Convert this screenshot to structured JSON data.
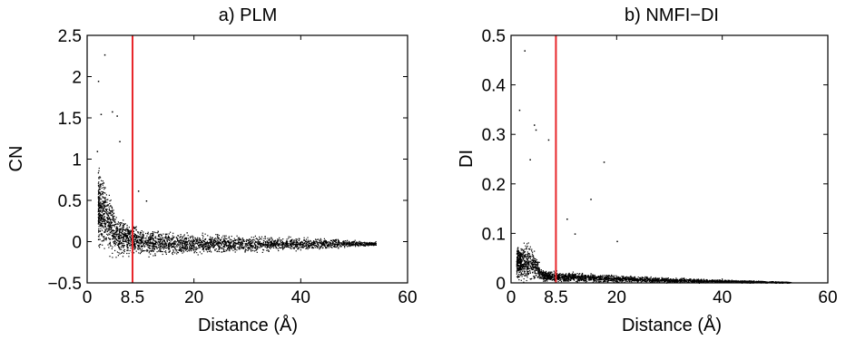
{
  "chart_data": [
    {
      "type": "scatter",
      "title": "a) PLM",
      "xlabel": "Distance (Å)",
      "ylabel": "CN",
      "xlim": [
        0,
        60
      ],
      "ylim": [
        -0.5,
        2.5
      ],
      "xticks": [
        0,
        8.5,
        20,
        40,
        60
      ],
      "xtick_labels": [
        "0",
        "8.5",
        "20",
        "40",
        "60"
      ],
      "yticks": [
        -0.5,
        0,
        0.5,
        1,
        1.5,
        2,
        2.5
      ],
      "ytick_labels": [
        "−0.5",
        "0",
        "0.5",
        "1",
        "1.5",
        "2",
        "2.5"
      ],
      "grid": false,
      "threshold_line": {
        "x": 8.5,
        "color": "#e8262a"
      },
      "point_color": "#000000",
      "density_envelope": [
        {
          "x": 2,
          "lo": -0.15,
          "hi": 1.0
        },
        {
          "x": 3,
          "lo": -0.22,
          "hi": 0.95
        },
        {
          "x": 4,
          "lo": -0.23,
          "hi": 0.65
        },
        {
          "x": 6,
          "lo": -0.22,
          "hi": 0.35
        },
        {
          "x": 10,
          "lo": -0.2,
          "hi": 0.2
        },
        {
          "x": 15,
          "lo": -0.18,
          "hi": 0.15
        },
        {
          "x": 20,
          "lo": -0.17,
          "hi": 0.13
        },
        {
          "x": 30,
          "lo": -0.15,
          "hi": 0.1
        },
        {
          "x": 40,
          "lo": -0.12,
          "hi": 0.07
        },
        {
          "x": 48,
          "lo": -0.08,
          "hi": 0.04
        },
        {
          "x": 54,
          "lo": -0.05,
          "hi": 0.01
        }
      ],
      "outliers": [
        {
          "x": 3.2,
          "y": 2.27
        },
        {
          "x": 2.0,
          "y": 1.95
        },
        {
          "x": 2.5,
          "y": 1.55
        },
        {
          "x": 4.6,
          "y": 1.58
        },
        {
          "x": 5.5,
          "y": 1.53
        },
        {
          "x": 6.0,
          "y": 1.22
        },
        {
          "x": 1.8,
          "y": 1.1
        },
        {
          "x": 9.5,
          "y": 0.62
        },
        {
          "x": 11.0,
          "y": 0.5
        }
      ]
    },
    {
      "type": "scatter",
      "title": "b) NMFI−DI",
      "xlabel": "Distance (Å)",
      "ylabel": "DI",
      "xlim": [
        0,
        60
      ],
      "ylim": [
        0,
        0.5
      ],
      "xticks": [
        0,
        8.5,
        20,
        40,
        60
      ],
      "xtick_labels": [
        "0",
        "8.5",
        "20",
        "40",
        "60"
      ],
      "yticks": [
        0,
        0.1,
        0.2,
        0.3,
        0.4,
        0.5
      ],
      "ytick_labels": [
        "0",
        "0.1",
        "0.2",
        "0.3",
        "0.4",
        "0.5"
      ],
      "grid": false,
      "threshold_line": {
        "x": 8.5,
        "color": "#e8262a"
      },
      "point_color": "#000000",
      "density_envelope": [
        {
          "x": 1,
          "lo": 0.0,
          "hi": 0.08
        },
        {
          "x": 3,
          "lo": 0.0,
          "hi": 0.09
        },
        {
          "x": 4,
          "lo": 0.0,
          "hi": 0.08
        },
        {
          "x": 6,
          "lo": 0.0,
          "hi": 0.03
        },
        {
          "x": 10,
          "lo": 0.0,
          "hi": 0.025
        },
        {
          "x": 20,
          "lo": 0.0,
          "hi": 0.018
        },
        {
          "x": 30,
          "lo": 0.0,
          "hi": 0.012
        },
        {
          "x": 40,
          "lo": 0.0,
          "hi": 0.008
        },
        {
          "x": 48,
          "lo": 0.0,
          "hi": 0.005
        },
        {
          "x": 53,
          "lo": 0.0,
          "hi": 0.003
        }
      ],
      "outliers": [
        {
          "x": 2.5,
          "y": 0.47
        },
        {
          "x": 1.5,
          "y": 0.35
        },
        {
          "x": 4.3,
          "y": 0.32
        },
        {
          "x": 4.6,
          "y": 0.31
        },
        {
          "x": 7.0,
          "y": 0.29
        },
        {
          "x": 3.5,
          "y": 0.25
        },
        {
          "x": 17.5,
          "y": 0.245
        },
        {
          "x": 15.0,
          "y": 0.17
        },
        {
          "x": 10.5,
          "y": 0.13
        },
        {
          "x": 12.0,
          "y": 0.1
        },
        {
          "x": 20.0,
          "y": 0.085
        }
      ]
    }
  ]
}
